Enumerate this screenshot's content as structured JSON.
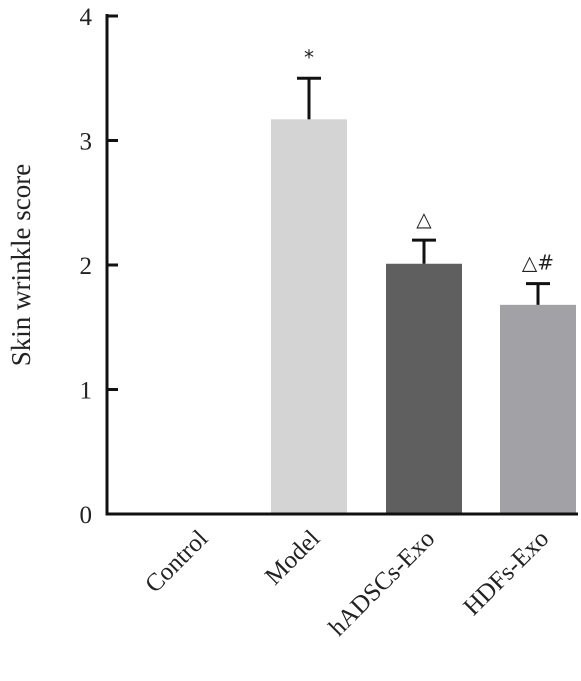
{
  "chart_data": {
    "type": "bar",
    "title": "",
    "xlabel": "",
    "ylabel": "Skin wrinkle score",
    "categories": [
      "Control",
      "Model",
      "hADSCs-Exo",
      "HDFs-Exo"
    ],
    "values": [
      0,
      3.17,
      2.01,
      1.68
    ],
    "errors": [
      0,
      0.33,
      0.19,
      0.17
    ],
    "annotations": [
      "",
      "*",
      "△",
      "△#"
    ],
    "colors": [
      "#d9d9d9",
      "#d4d4d4",
      "#5f5f5f",
      "#a2a2a6"
    ],
    "ylim": [
      0,
      4
    ],
    "yticks": [
      0,
      1,
      2,
      3,
      4
    ],
    "grid": false,
    "legend": "none"
  }
}
